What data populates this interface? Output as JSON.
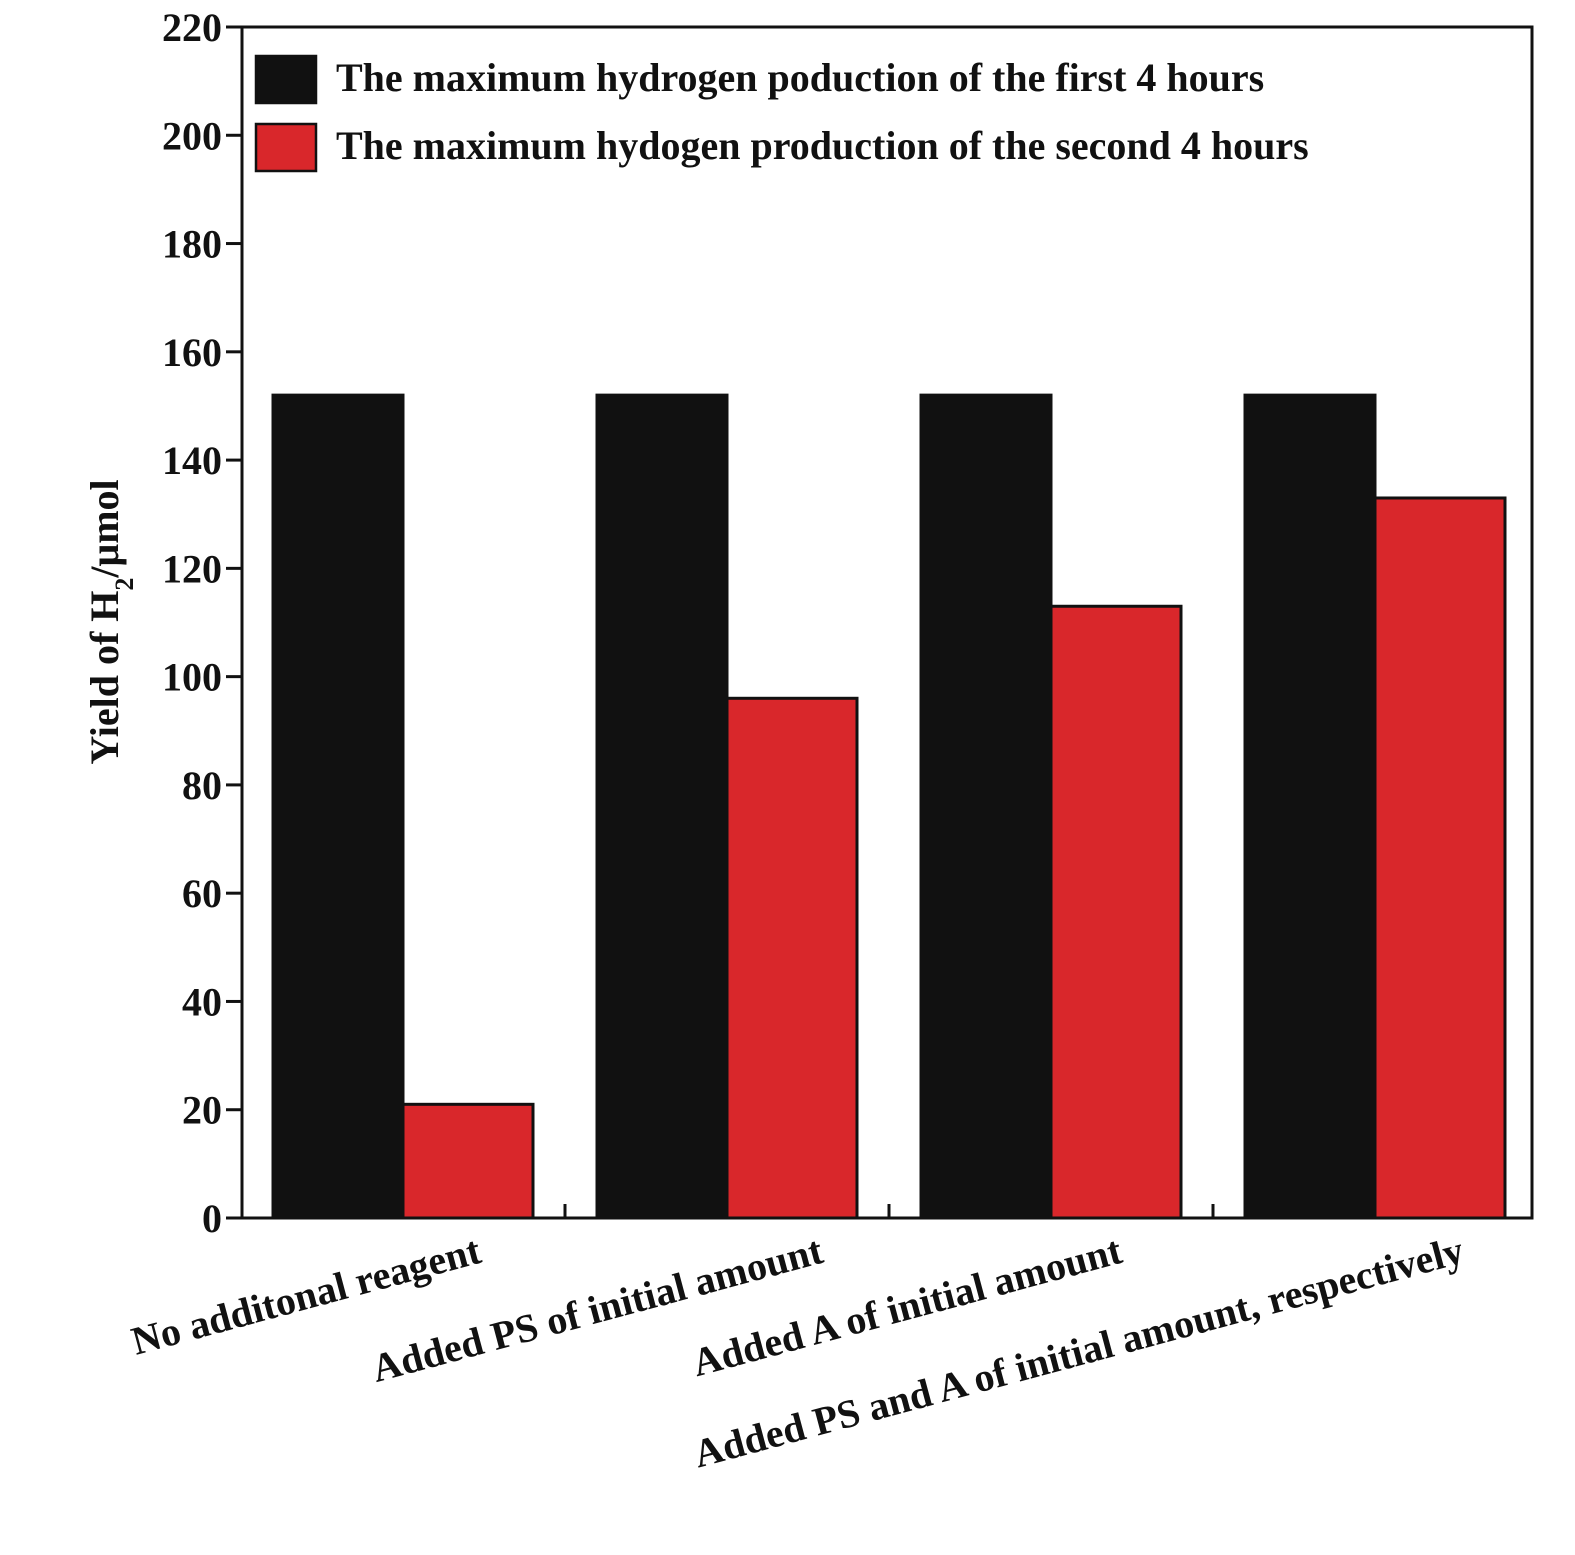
{
  "chart_data": {
    "type": "bar",
    "title": "",
    "xlabel": "",
    "ylabel": {
      "prefix": "Yield of H",
      "subscript": "2",
      "suffix": "/μmol"
    },
    "ylim": [
      0,
      220
    ],
    "yticks": [
      0,
      20,
      40,
      60,
      80,
      100,
      120,
      140,
      160,
      180,
      200,
      220
    ],
    "grid": false,
    "legend_position": "top-right",
    "categories": [
      "No additonal reagent",
      "Added PS of initial amount",
      "Added A of initial amount",
      "Added PS and A of initial amount, respectively"
    ],
    "series": [
      {
        "name": "The maximum hydrogen poduction of the first 4 hours",
        "color": "#111111",
        "values": [
          152,
          152,
          152,
          152
        ]
      },
      {
        "name": "The maximum hydogen production of the second 4 hours",
        "color": "#d9272b",
        "values": [
          21,
          96,
          113,
          133
        ]
      }
    ]
  }
}
